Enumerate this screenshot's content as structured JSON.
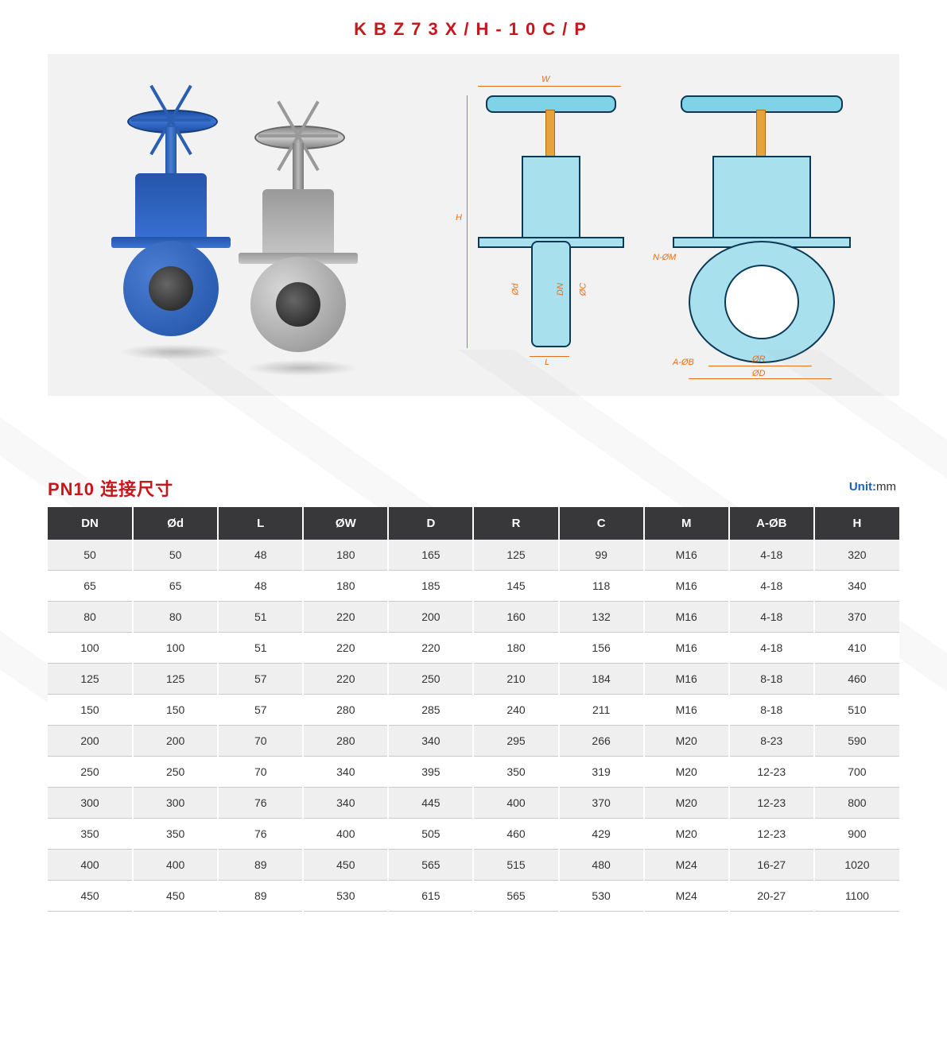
{
  "title": "KBZ73X/H-10C/P",
  "tableTitle": "PN10 连接尺寸",
  "unitLabel": "Unit:",
  "unitValue": "mm",
  "dimLabels": {
    "W": "W",
    "H": "H",
    "L": "L",
    "Od": "Ød",
    "DN": "DN",
    "OC": "ØC",
    "NOM": "N-ØM",
    "AOB": "A-ØB",
    "OR": "ØR",
    "OD": "ØD"
  },
  "table": {
    "header_bg": "#38383a",
    "header_fg": "#ffffff",
    "row_odd_bg": "#efefef",
    "row_even_bg": "#ffffff",
    "columns": [
      "DN",
      "Ød",
      "L",
      "ØW",
      "D",
      "R",
      "C",
      "M",
      "A-ØB",
      "H"
    ],
    "rows": [
      [
        "50",
        "50",
        "48",
        "180",
        "165",
        "125",
        "99",
        "M16",
        "4-18",
        "320"
      ],
      [
        "65",
        "65",
        "48",
        "180",
        "185",
        "145",
        "118",
        "M16",
        "4-18",
        "340"
      ],
      [
        "80",
        "80",
        "51",
        "220",
        "200",
        "160",
        "132",
        "M16",
        "4-18",
        "370"
      ],
      [
        "100",
        "100",
        "51",
        "220",
        "220",
        "180",
        "156",
        "M16",
        "4-18",
        "410"
      ],
      [
        "125",
        "125",
        "57",
        "220",
        "250",
        "210",
        "184",
        "M16",
        "8-18",
        "460"
      ],
      [
        "150",
        "150",
        "57",
        "280",
        "285",
        "240",
        "211",
        "M16",
        "8-18",
        "510"
      ],
      [
        "200",
        "200",
        "70",
        "280",
        "340",
        "295",
        "266",
        "M20",
        "8-23",
        "590"
      ],
      [
        "250",
        "250",
        "70",
        "340",
        "395",
        "350",
        "319",
        "M20",
        "12-23",
        "700"
      ],
      [
        "300",
        "300",
        "76",
        "340",
        "445",
        "400",
        "370",
        "M20",
        "12-23",
        "800"
      ],
      [
        "350",
        "350",
        "76",
        "400",
        "505",
        "460",
        "429",
        "M20",
        "12-23",
        "900"
      ],
      [
        "400",
        "400",
        "89",
        "450",
        "565",
        "515",
        "480",
        "M24",
        "16-27",
        "1020"
      ],
      [
        "450",
        "450",
        "89",
        "530",
        "615",
        "565",
        "530",
        "M24",
        "20-27",
        "1100"
      ]
    ]
  },
  "colors": {
    "title": "#c8161d",
    "hero_bg": "#f2f2f2",
    "valve_blue": "#2e63c0",
    "valve_steel": "#a8a8a8",
    "drawing_fill": "#a8e0ee",
    "drawing_stroke": "#0a3a56",
    "dim_color": "#e6701a",
    "unit_label": "#1e62b8"
  }
}
